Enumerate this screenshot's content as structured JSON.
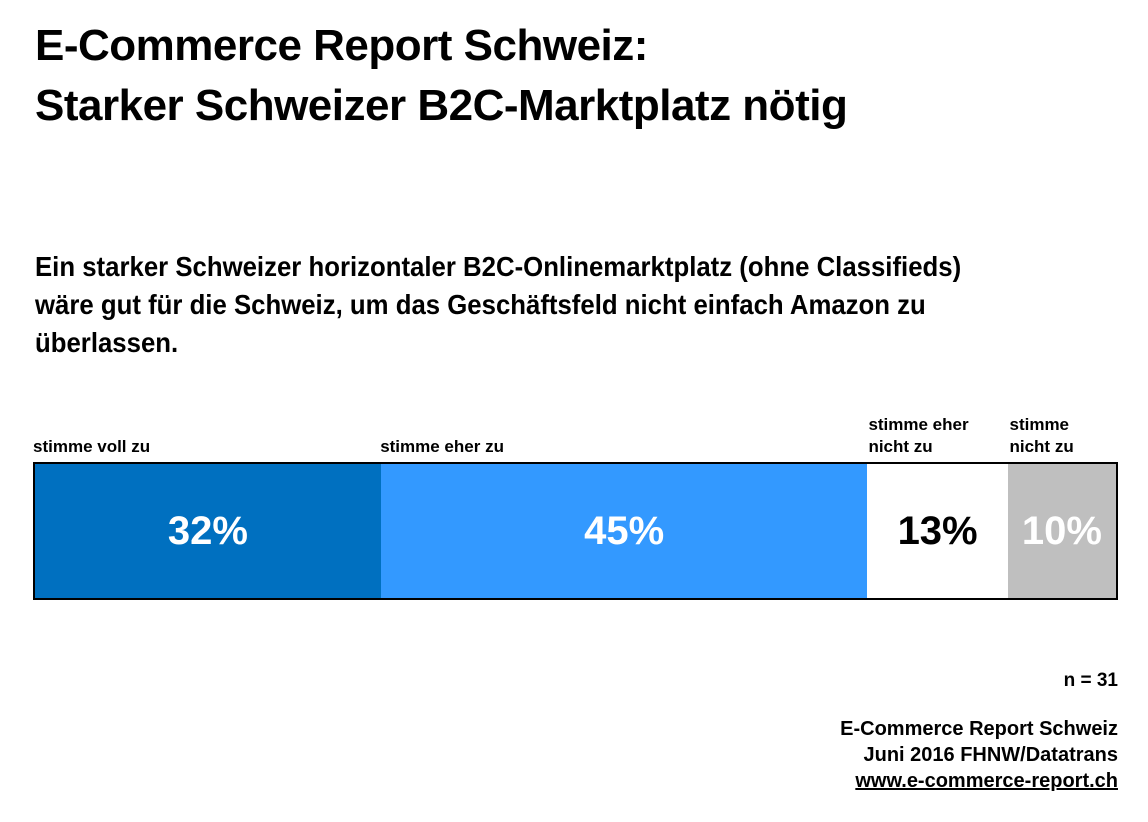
{
  "title": "E-Commerce Report Schweiz:\nStarker Schweizer B2C-Marktplatz nötig",
  "question": "Ein starker Schweizer horizontaler B2C-Onlinemarktplatz (ohne Classifieds)\nwäre gut für die Schweiz, um das Geschäftsfeld nicht einfach Amazon zu\nüberlassen.",
  "sample_size": "n = 31",
  "footer": {
    "line1": "E-Commerce Report Schweiz",
    "line2": "Juni 2016 FHNW/Datatrans",
    "link": "www.e-commerce-report.ch"
  },
  "chart_data": {
    "type": "bar",
    "orientation": "horizontal-stacked",
    "title": "",
    "categories": [
      "stimme voll zu",
      "stimme eher zu",
      "stimme eher nicht zu",
      "stimme nicht zu"
    ],
    "values": [
      32,
      45,
      13,
      10
    ],
    "unit": "%",
    "xlim": [
      0,
      100
    ],
    "segment_colors": [
      "#0070C0",
      "#3399FF",
      "#FFFFFF",
      "#BFBFBF"
    ],
    "value_text_colors": [
      "#FFFFFF",
      "#FFFFFF",
      "#000000",
      "#FFFFFF"
    ],
    "border_color": "#000000",
    "legend_position": "labels-above-segments",
    "grid": false
  }
}
